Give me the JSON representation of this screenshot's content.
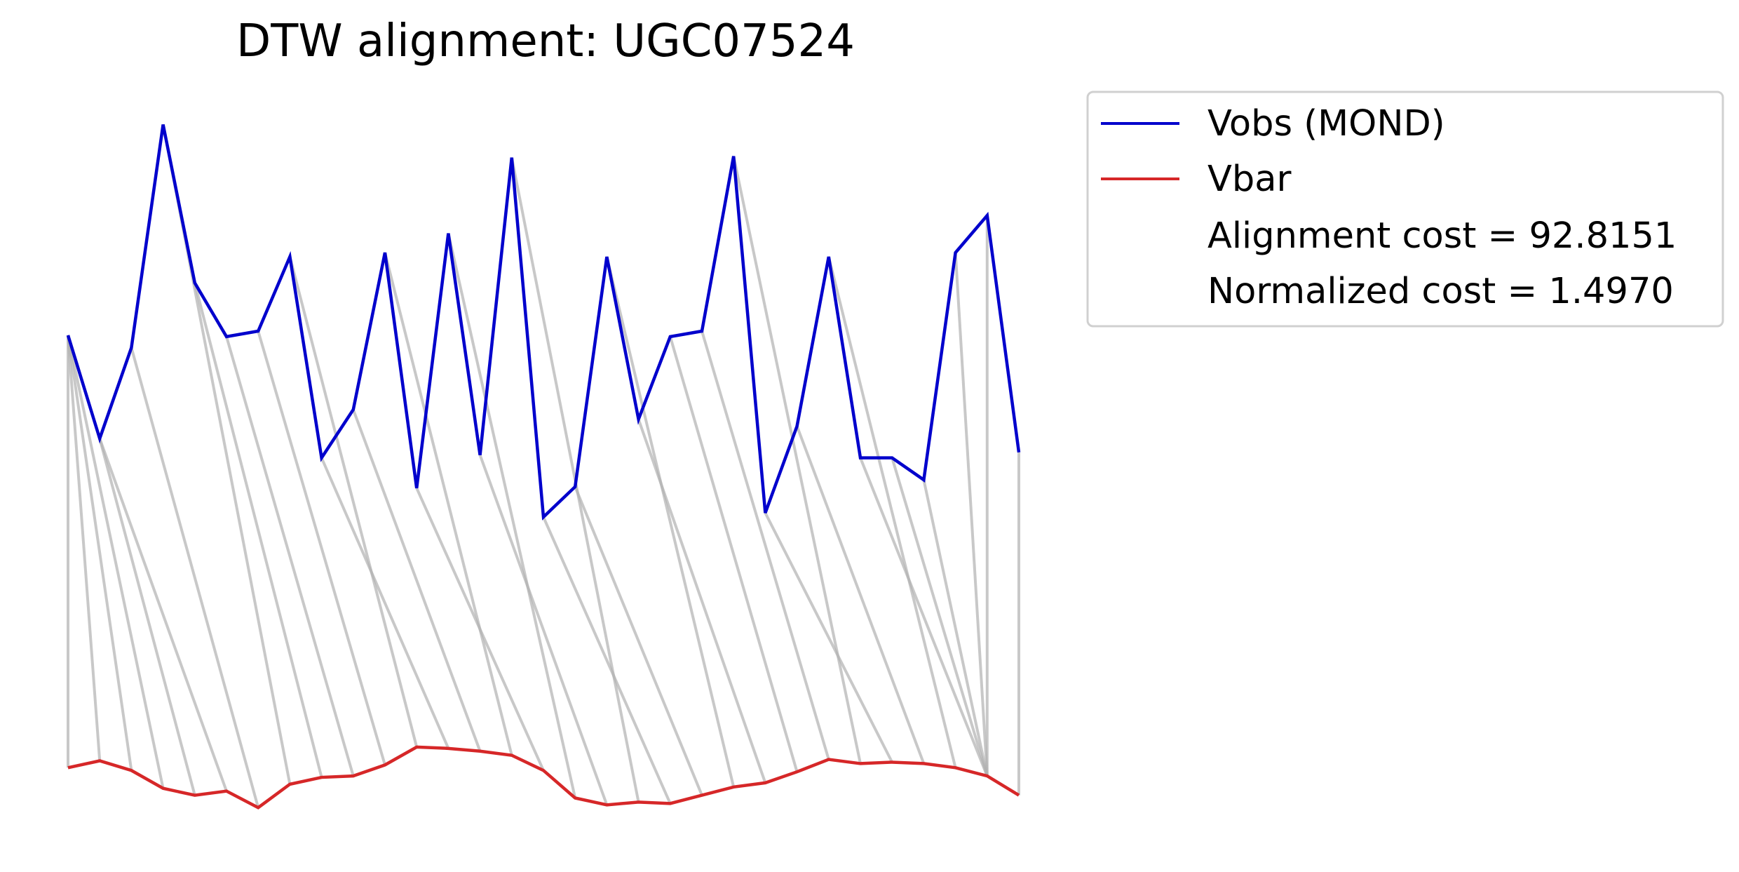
{
  "chart_data": {
    "type": "line",
    "title": "DTW alignment: UGC07524",
    "xlabel": "",
    "ylabel": "",
    "axes_visible": false,
    "grid": false,
    "legend_position": "outside-right-top",
    "colors": {
      "vobs": "#0000cc",
      "vbar": "#d62728",
      "connector": "#b0b0b0"
    },
    "series": [
      {
        "name": "Vobs (MOND)",
        "color": "#0000cc",
        "values": [
          53.5,
          46.0,
          52.6,
          68.8,
          57.3,
          53.4,
          53.8,
          59.2,
          44.6,
          48.1,
          59.5,
          42.4,
          60.9,
          44.8,
          66.4,
          40.3,
          42.5,
          59.2,
          47.4,
          53.4,
          53.8,
          66.5,
          40.6,
          46.9,
          59.2,
          44.6,
          44.6,
          43.0,
          59.5,
          62.2,
          45.0
        ]
      },
      {
        "name": "Vbar",
        "color": "#d62728",
        "values": [
          22.1,
          22.6,
          21.9,
          20.6,
          20.1,
          20.4,
          19.2,
          20.9,
          21.4,
          21.5,
          22.3,
          23.6,
          23.5,
          23.3,
          23.0,
          21.9,
          19.9,
          19.4,
          19.6,
          19.5,
          20.1,
          20.7,
          21.0,
          21.8,
          22.7,
          22.4,
          22.5,
          22.4,
          22.1,
          21.5,
          20.1
        ]
      }
    ],
    "alignment_path": [
      [
        0,
        0
      ],
      [
        0,
        1
      ],
      [
        0,
        2
      ],
      [
        0,
        3
      ],
      [
        1,
        4
      ],
      [
        1,
        5
      ],
      [
        2,
        6
      ],
      [
        3,
        7
      ],
      [
        4,
        8
      ],
      [
        5,
        9
      ],
      [
        6,
        10
      ],
      [
        7,
        11
      ],
      [
        8,
        12
      ],
      [
        9,
        13
      ],
      [
        10,
        14
      ],
      [
        11,
        15
      ],
      [
        12,
        16
      ],
      [
        13,
        17
      ],
      [
        14,
        18
      ],
      [
        15,
        19
      ],
      [
        16,
        20
      ],
      [
        17,
        21
      ],
      [
        18,
        22
      ],
      [
        19,
        23
      ],
      [
        20,
        24
      ],
      [
        21,
        25
      ],
      [
        22,
        26
      ],
      [
        23,
        27
      ],
      [
        24,
        28
      ],
      [
        25,
        29
      ],
      [
        26,
        29
      ],
      [
        27,
        29
      ],
      [
        28,
        29
      ],
      [
        29,
        29
      ],
      [
        30,
        30
      ]
    ],
    "legend": [
      {
        "label": "Vobs (MOND)",
        "color": "#0000cc",
        "marker": "line"
      },
      {
        "label": "Vbar",
        "color": "#d62728",
        "marker": "line"
      },
      {
        "label": "Alignment cost = 92.8151",
        "color": "",
        "marker": "none"
      },
      {
        "label": "Normalized cost = 1.4970",
        "color": "",
        "marker": "none"
      }
    ]
  }
}
